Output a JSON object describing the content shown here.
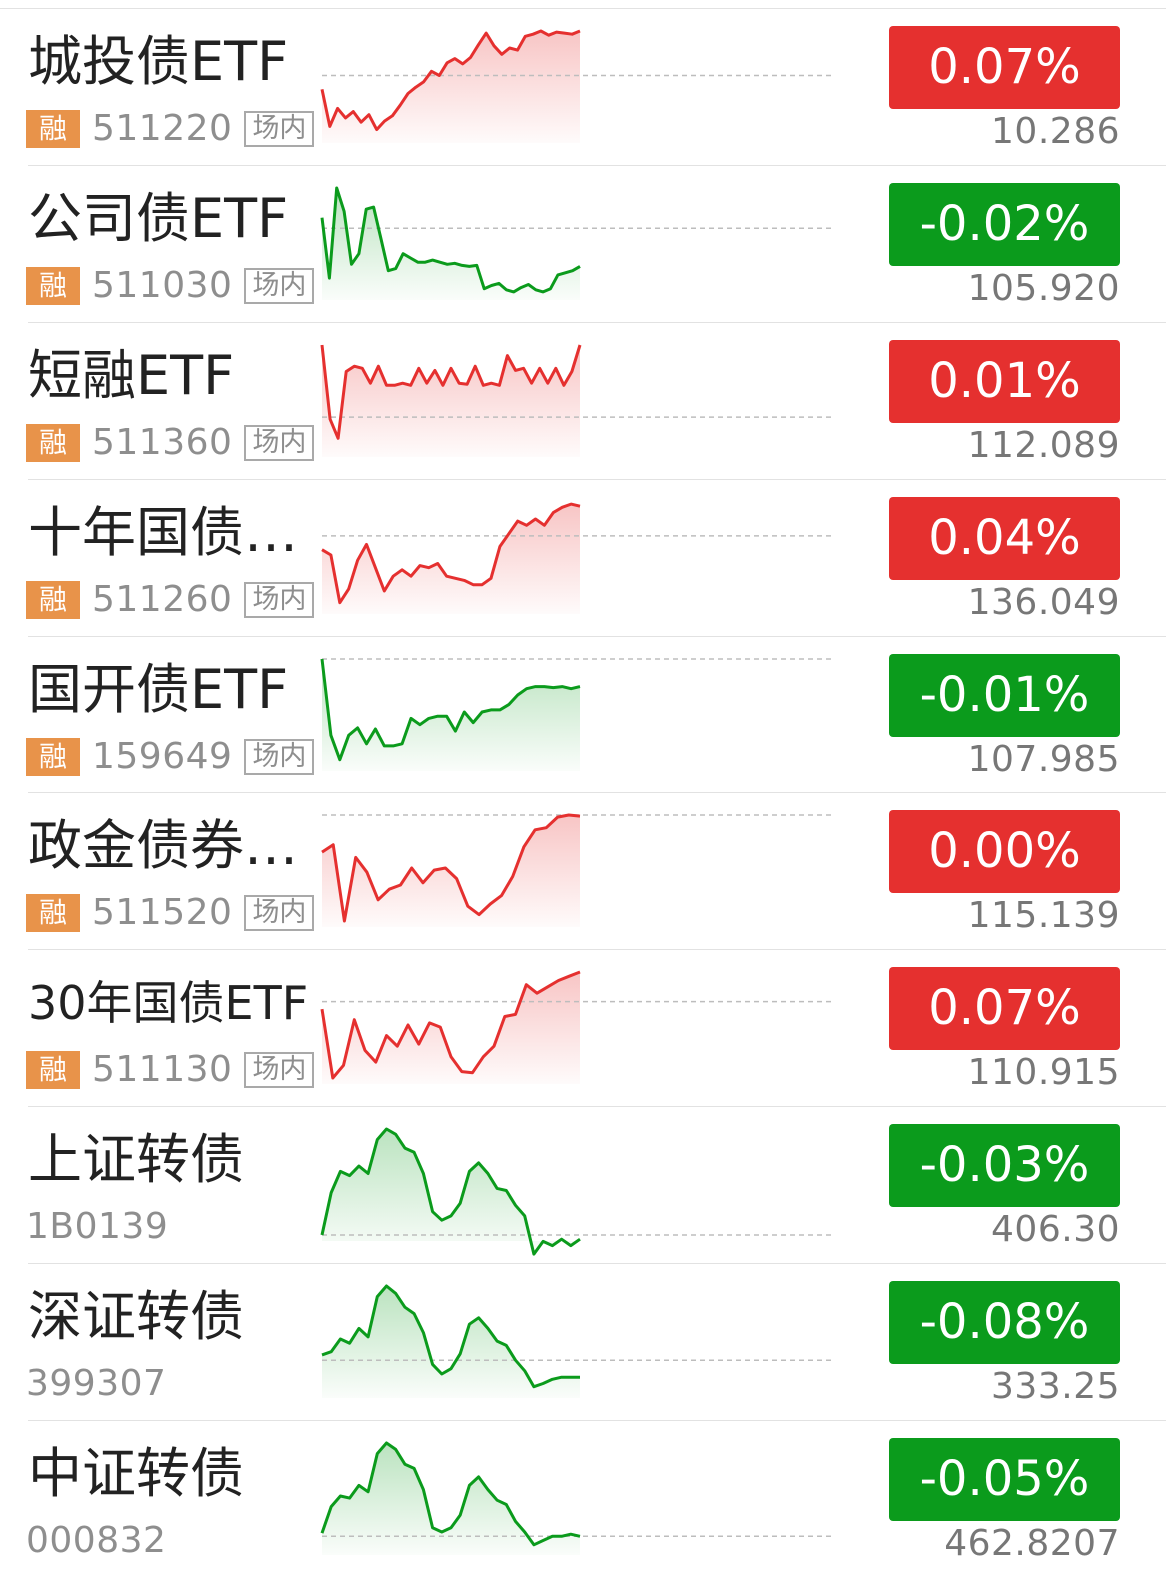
{
  "colors": {
    "up": "#e5302f",
    "down": "#0b9b1c",
    "badge": "#e8934a"
  },
  "badge_label": "融",
  "tag_label": "场内",
  "items": [
    {
      "name": "城投债ETF",
      "code": "511220",
      "margin": true,
      "tag": true,
      "change": "0.07%",
      "direction": "up",
      "price": "10.286",
      "trend": [
        0.45,
        0.1,
        0.27,
        0.18,
        0.24,
        0.14,
        0.21,
        0.07,
        0.15,
        0.2,
        0.3,
        0.41,
        0.47,
        0.52,
        0.62,
        0.58,
        0.7,
        0.74,
        0.69,
        0.75,
        0.87,
        0.98,
        0.86,
        0.78,
        0.84,
        0.82,
        0.95,
        0.97,
        1.0,
        0.96,
        0.99,
        0.98,
        0.97,
        1.0
      ],
      "baseline": 0.58
    },
    {
      "name": "公司债ETF",
      "code": "511030",
      "margin": true,
      "tag": true,
      "change": "-0.02%",
      "direction": "down",
      "price": "105.920",
      "trend": [
        0.72,
        0.15,
        1.0,
        0.78,
        0.28,
        0.38,
        0.8,
        0.82,
        0.52,
        0.22,
        0.24,
        0.38,
        0.34,
        0.3,
        0.3,
        0.32,
        0.3,
        0.28,
        0.29,
        0.27,
        0.26,
        0.27,
        0.05,
        0.08,
        0.1,
        0.04,
        0.02,
        0.06,
        0.09,
        0.04,
        0.02,
        0.05,
        0.18,
        0.2,
        0.22,
        0.26
      ],
      "baseline": 0.62
    },
    {
      "name": "短融ETF",
      "code": "511360",
      "margin": true,
      "tag": true,
      "change": "0.01%",
      "direction": "up",
      "price": "112.089",
      "trend": [
        1.0,
        0.3,
        0.12,
        0.75,
        0.8,
        0.78,
        0.64,
        0.8,
        0.62,
        0.62,
        0.64,
        0.62,
        0.78,
        0.64,
        0.76,
        0.62,
        0.78,
        0.64,
        0.63,
        0.8,
        0.62,
        0.64,
        0.62,
        0.9,
        0.76,
        0.78,
        0.64,
        0.78,
        0.64,
        0.78,
        0.62,
        0.75,
        1.0
      ],
      "baseline": 0.32
    },
    {
      "name": "十年国债ETF",
      "code": "511260",
      "margin": true,
      "tag": true,
      "change": "0.04%",
      "direction": "up",
      "price": "136.049",
      "trend": [
        0.55,
        0.5,
        0.05,
        0.18,
        0.45,
        0.6,
        0.38,
        0.16,
        0.3,
        0.36,
        0.3,
        0.4,
        0.38,
        0.42,
        0.3,
        0.28,
        0.26,
        0.22,
        0.22,
        0.28,
        0.58,
        0.7,
        0.82,
        0.78,
        0.84,
        0.78,
        0.9,
        0.95,
        0.98,
        0.96
      ],
      "baseline": 0.68
    },
    {
      "name": "国开债ETF",
      "code": "159649",
      "margin": true,
      "tag": true,
      "change": "-0.01%",
      "direction": "down",
      "price": "107.985",
      "trend": [
        1.0,
        0.28,
        0.05,
        0.28,
        0.35,
        0.2,
        0.34,
        0.18,
        0.18,
        0.2,
        0.44,
        0.38,
        0.44,
        0.46,
        0.46,
        0.32,
        0.5,
        0.4,
        0.5,
        0.52,
        0.52,
        0.57,
        0.66,
        0.72,
        0.74,
        0.74,
        0.73,
        0.74,
        0.72,
        0.74
      ],
      "baseline": 1.0
    },
    {
      "name": "政金债券ETF",
      "code": "511520",
      "margin": true,
      "tag": true,
      "change": "0.00%",
      "direction": "up",
      "price": "115.139",
      "trend": [
        0.65,
        0.72,
        0.0,
        0.6,
        0.46,
        0.2,
        0.3,
        0.34,
        0.5,
        0.36,
        0.48,
        0.5,
        0.4,
        0.14,
        0.06,
        0.16,
        0.24,
        0.42,
        0.7,
        0.86,
        0.88,
        0.98,
        1.0,
        0.99
      ],
      "baseline": 1.0
    },
    {
      "name": "30年国债ETF",
      "code": "511130",
      "margin": true,
      "tag": true,
      "change": "0.07%",
      "direction": "up",
      "price": "110.915",
      "trend": [
        0.65,
        0.0,
        0.12,
        0.55,
        0.26,
        0.15,
        0.4,
        0.3,
        0.5,
        0.32,
        0.52,
        0.48,
        0.2,
        0.06,
        0.05,
        0.2,
        0.3,
        0.58,
        0.6,
        0.88,
        0.8,
        0.86,
        0.92,
        0.96,
        1.0
      ],
      "baseline": 0.72
    },
    {
      "name": "上证转债",
      "code": "1B0139",
      "margin": false,
      "tag": false,
      "change": "-0.03%",
      "direction": "down",
      "price": "406.30",
      "trend": [
        0.0,
        0.4,
        0.6,
        0.56,
        0.65,
        0.58,
        0.9,
        1.0,
        0.95,
        0.82,
        0.78,
        0.58,
        0.22,
        0.14,
        0.18,
        0.3,
        0.6,
        0.68,
        0.58,
        0.44,
        0.42,
        0.28,
        0.18,
        -0.18,
        -0.06,
        -0.1,
        -0.04,
        -0.1,
        -0.04
      ],
      "baseline": 0.0
    },
    {
      "name": "深证转债",
      "code": "399307",
      "margin": false,
      "tag": false,
      "change": "-0.08%",
      "direction": "down",
      "price": "333.25",
      "trend": [
        0.35,
        0.38,
        0.5,
        0.46,
        0.6,
        0.52,
        0.9,
        1.0,
        0.93,
        0.8,
        0.74,
        0.56,
        0.26,
        0.17,
        0.22,
        0.36,
        0.64,
        0.7,
        0.6,
        0.48,
        0.44,
        0.3,
        0.2,
        0.05,
        0.08,
        0.12,
        0.14,
        0.14,
        0.14
      ],
      "baseline": 0.3
    },
    {
      "name": "中证转债",
      "code": "000832",
      "margin": false,
      "tag": false,
      "change": "-0.05%",
      "direction": "down",
      "price": "462.8207",
      "trend": [
        0.15,
        0.4,
        0.5,
        0.48,
        0.6,
        0.54,
        0.9,
        1.0,
        0.94,
        0.8,
        0.76,
        0.56,
        0.2,
        0.16,
        0.2,
        0.32,
        0.6,
        0.68,
        0.56,
        0.46,
        0.42,
        0.26,
        0.16,
        0.04,
        0.08,
        0.12,
        0.12,
        0.14,
        0.12
      ],
      "baseline": 0.12
    }
  ]
}
